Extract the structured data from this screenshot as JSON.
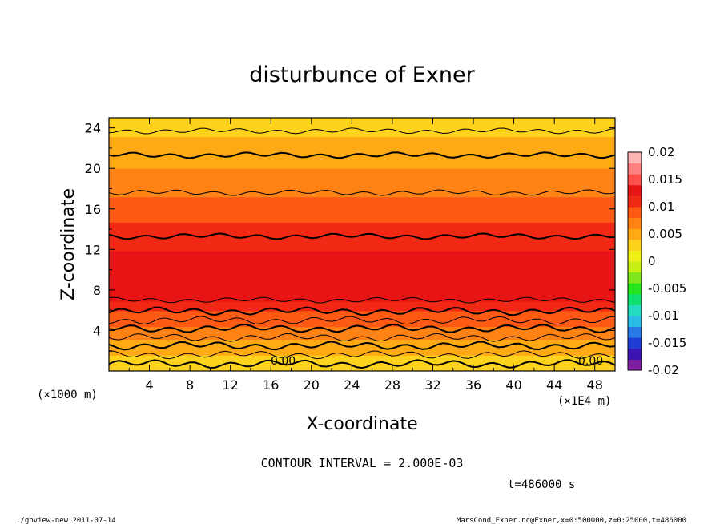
{
  "chart_data": {
    "type": "heatmap",
    "title": "disturbunce of Exner",
    "xlabel": "X-coordinate",
    "ylabel": "Z-coordinate",
    "x_unit_left": "(×1000 m)",
    "x_unit_right": "(×1E4 m)",
    "xlim": [
      0,
      50
    ],
    "ylim": [
      0,
      25
    ],
    "xticks": [
      "4",
      "8",
      "12",
      "16",
      "20",
      "24",
      "28",
      "32",
      "36",
      "40",
      "44",
      "48"
    ],
    "yticks": [
      "4",
      "8",
      "12",
      "16",
      "20",
      "24"
    ],
    "colorbar": {
      "range": [
        -0.02,
        0.02
      ],
      "tick_labels": [
        "0.02",
        "0.015",
        "0.01",
        "0.005",
        "0",
        "-0.005",
        "-0.01",
        "-0.015",
        "-0.02"
      ],
      "colors": [
        "#7f1fa0",
        "#3a14b0",
        "#1e3cd2",
        "#2a78e6",
        "#2bbde6",
        "#25dcc0",
        "#10e070",
        "#27e61e",
        "#80e61e",
        "#c8f014",
        "#f0f014",
        "#ffd21e",
        "#ffaa14",
        "#ff8214",
        "#ff5a14",
        "#f02814",
        "#e61414",
        "#ff5050",
        "#ff8080",
        "#ffb4b4"
      ]
    },
    "contour_interval_text": "CONTOUR INTERVAL = 2.000E-03",
    "contour_label": "0.00",
    "vertical_profile": {
      "z": [
        0,
        1.5,
        3,
        4.5,
        6,
        7,
        8.5,
        10,
        12,
        14,
        16,
        18,
        20,
        21.5,
        23,
        25
      ],
      "value": [
        0.003,
        0.004,
        0.006,
        0.008,
        0.01,
        0.012,
        0.014,
        0.0135,
        0.012,
        0.0105,
        0.009,
        0.0075,
        0.006,
        0.005,
        0.004,
        0.003
      ]
    },
    "time_text": "t=486000 s"
  },
  "footer": {
    "left": "./gpview-new  2011-07-14",
    "right": "MarsCond_Exner.nc@Exner,x=0:500000,z=0:25000,t=486000"
  }
}
